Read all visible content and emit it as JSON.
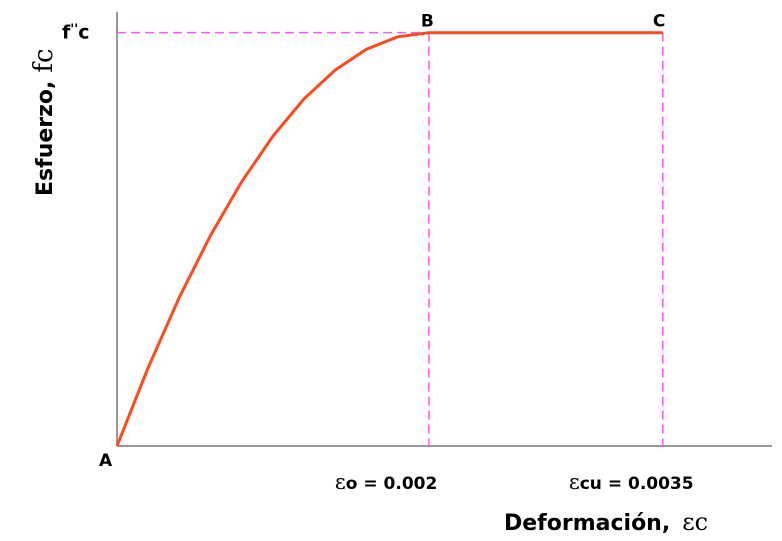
{
  "chart_data": {
    "type": "line",
    "title": "",
    "ylabel_text": "Esfuerzo,",
    "ylabel_symbol": "fc",
    "xlabel_text": "Deformación,",
    "xlabel_symbol": "εc",
    "xlim": [
      0,
      0.0042
    ],
    "ylim": [
      0,
      1.05
    ],
    "grid": false,
    "curve_color": "#ff4a1c",
    "guide_color": "#ff55ff",
    "series": [
      {
        "x": [
          0,
          0.0002,
          0.0004,
          0.0006,
          0.0008,
          0.001,
          0.0012,
          0.0014,
          0.0016,
          0.0018,
          0.002,
          0.0035
        ],
        "y": [
          0,
          0.19,
          0.36,
          0.51,
          0.64,
          0.75,
          0.84,
          0.91,
          0.96,
          0.99,
          1.0,
          1.0
        ]
      }
    ],
    "points": [
      {
        "label": "A",
        "x": 0,
        "y": 0
      },
      {
        "label": "B",
        "x": 0.002,
        "y": 1.0
      },
      {
        "label": "C",
        "x": 0.0035,
        "y": 1.0
      }
    ],
    "y_tick": {
      "value": 1.0,
      "main": "f",
      "mark": "''",
      "sub": "c"
    },
    "x_ticks": [
      {
        "value": 0.002,
        "symbol": "ε",
        "sub": "o",
        "text": " = 0.002"
      },
      {
        "value": 0.0035,
        "symbol": "ε",
        "sub": "cu",
        "text": " = 0.0035"
      }
    ]
  }
}
